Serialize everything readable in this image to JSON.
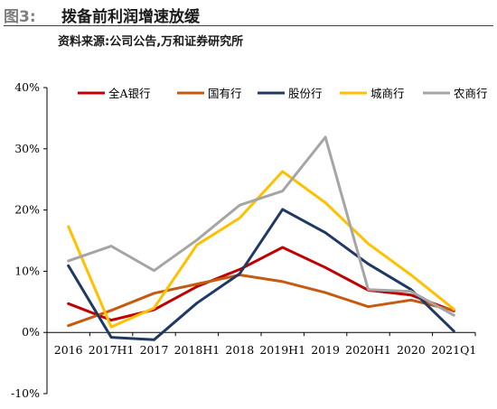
{
  "header": {
    "figure_number": "图3:",
    "title": "拨备前利润增速放缓",
    "source": "资料来源:公司公告,万和证券研究所"
  },
  "chart_data": {
    "type": "line",
    "categories": [
      "2016",
      "2017H1",
      "2017",
      "2018H1",
      "2018",
      "2019H1",
      "2019",
      "2020H1",
      "2020",
      "2021Q1"
    ],
    "y_ticks": [
      "40%",
      "30%",
      "20%",
      "10%",
      "0%",
      "-10%"
    ],
    "ylim": [
      -10,
      40
    ],
    "grid": false,
    "legend_position": "top",
    "series": [
      {
        "name": "全A银行",
        "color": "#c00000",
        "values": [
          4.7,
          2.0,
          3.7,
          7.5,
          10.3,
          13.9,
          10.6,
          6.9,
          6.1,
          3.5
        ]
      },
      {
        "name": "国有行",
        "color": "#c55a11",
        "values": [
          1.1,
          3.6,
          6.4,
          7.9,
          9.4,
          8.3,
          6.5,
          4.2,
          5.3,
          3.6
        ]
      },
      {
        "name": "股份行",
        "color": "#1f3864",
        "values": [
          10.9,
          -0.8,
          -1.2,
          4.8,
          9.6,
          20.1,
          16.3,
          11.2,
          7.0,
          0.2
        ]
      },
      {
        "name": "城商行",
        "color": "#ffc000",
        "values": [
          17.3,
          0.9,
          4.0,
          14.3,
          18.7,
          26.3,
          21.2,
          14.5,
          9.4,
          3.8
        ]
      },
      {
        "name": "农商行",
        "color": "#a5a5a5",
        "values": [
          11.7,
          14.1,
          10.1,
          15.1,
          20.8,
          23.1,
          31.9,
          7.0,
          6.7,
          2.8
        ]
      }
    ]
  }
}
